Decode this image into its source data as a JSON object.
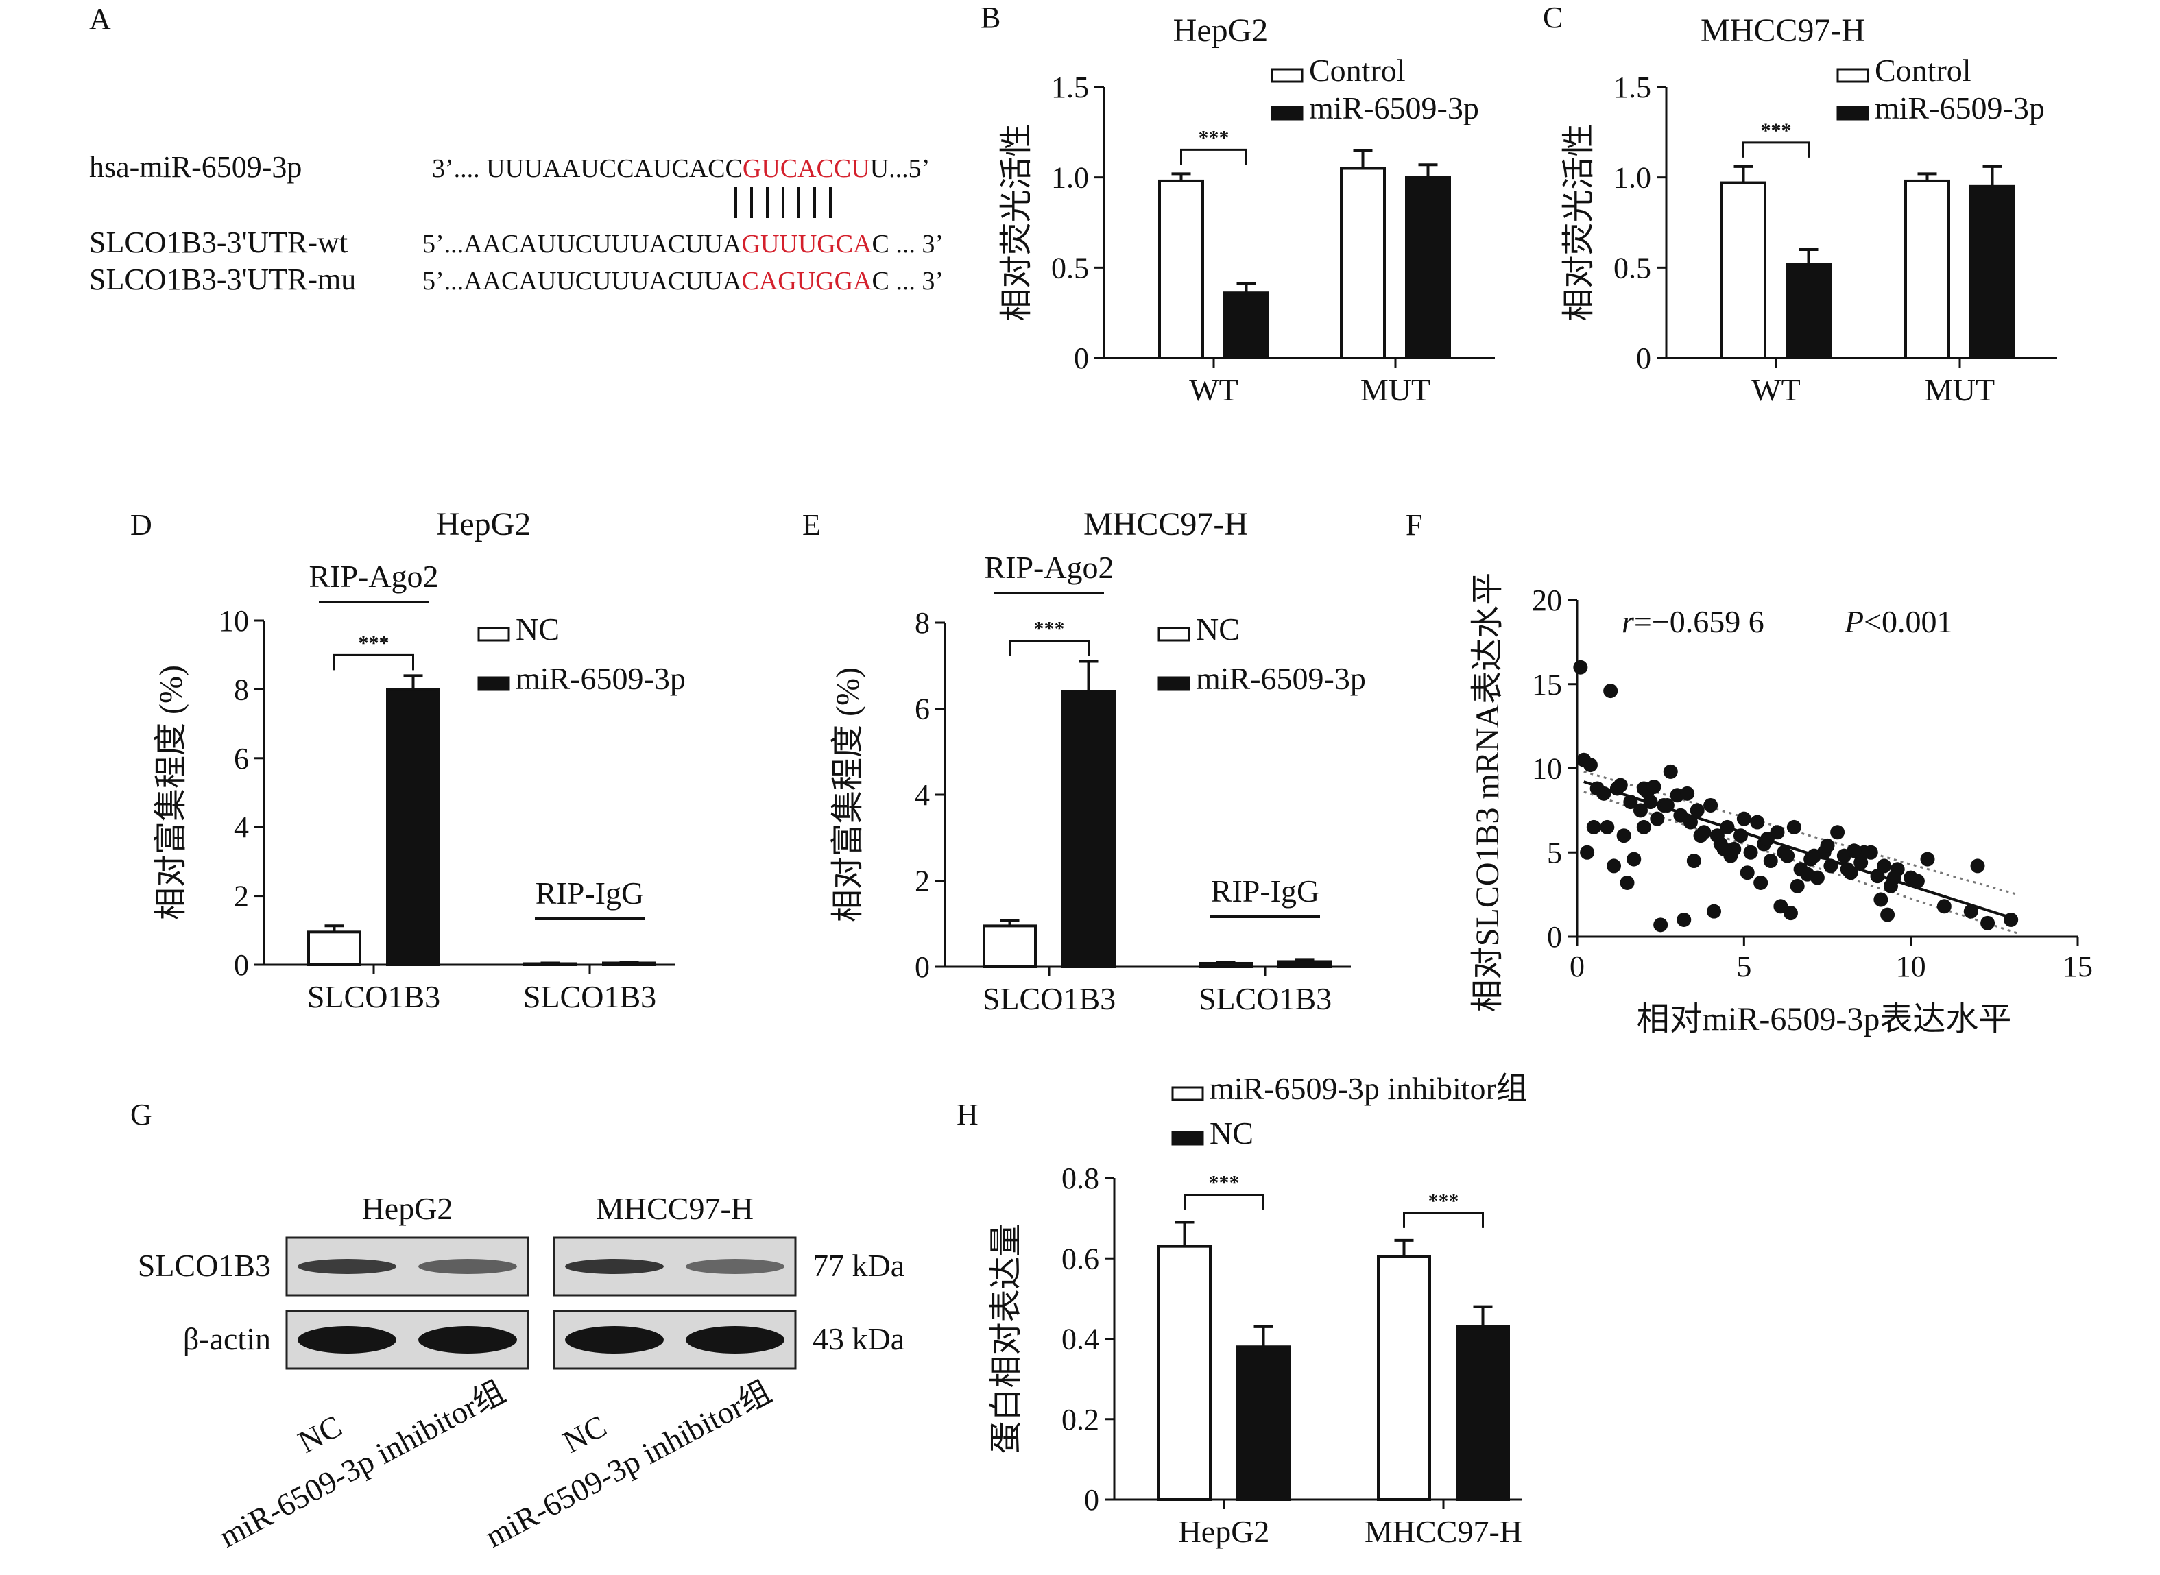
{
  "panelA": {
    "label": "A",
    "rows": [
      {
        "name": "hsa-miR-6509-3p",
        "seq_prefix": "3’.... UUUAAUCCAUCACC",
        "seq_hl": "GUCACCU",
        "seq_suffix": "U...5’"
      },
      {
        "name": "SLCO1B3-3'UTR-wt",
        "seq_prefix": "5’...AACAUUCUUUACUUA",
        "seq_hl": "GUUUGCA",
        "seq_suffix": "C ... 3’"
      },
      {
        "name": "SLCO1B3-3'UTR-mu",
        "seq_prefix": "5’...AACAUUCUUUACUUA",
        "seq_hl": "CAGUGGA",
        "seq_suffix": "C ... 3’"
      }
    ],
    "pairing_lines": 7,
    "highlight_color": "#d4202c"
  },
  "chart_data": [
    {
      "panel": "B",
      "type": "bar",
      "title": "HepG2",
      "ylabel": "相对荧光活性",
      "xlabel": "",
      "categories": [
        "WT",
        "MUT"
      ],
      "ylim": [
        0,
        1.5
      ],
      "yticks": [
        "0",
        "0.5",
        "1.0",
        "1.5"
      ],
      "series": [
        {
          "name": "Control",
          "fill": "white",
          "values": [
            0.98,
            1.05
          ],
          "errors": [
            0.04,
            0.1
          ]
        },
        {
          "name": "miR-6509-3p",
          "fill": "black",
          "values": [
            0.36,
            1.0
          ],
          "errors": [
            0.05,
            0.07
          ]
        }
      ],
      "significance": [
        {
          "category": 0,
          "label": "***"
        }
      ],
      "legend": "top-right"
    },
    {
      "panel": "C",
      "type": "bar",
      "title": "MHCC97-H",
      "ylabel": "相对荧光活性",
      "xlabel": "",
      "categories": [
        "WT",
        "MUT"
      ],
      "ylim": [
        0,
        1.5
      ],
      "yticks": [
        "0",
        "0.5",
        "1.0",
        "1.5"
      ],
      "series": [
        {
          "name": "Control",
          "fill": "white",
          "values": [
            0.97,
            0.98
          ],
          "errors": [
            0.09,
            0.04
          ]
        },
        {
          "name": "miR-6509-3p",
          "fill": "black",
          "values": [
            0.52,
            0.95
          ],
          "errors": [
            0.08,
            0.11
          ]
        }
      ],
      "significance": [
        {
          "category": 0,
          "label": "***"
        }
      ],
      "legend": "top-right"
    },
    {
      "panel": "D",
      "type": "bar",
      "title": "HepG2",
      "ylabel": "相对富集程度 (%)",
      "xlabel": "",
      "categories": [
        "SLCO1B3",
        "SLCO1B3"
      ],
      "group_labels": [
        "RIP-Ago2",
        "RIP-IgG"
      ],
      "ylim": [
        0,
        10
      ],
      "yticks": [
        "0",
        "2",
        "4",
        "6",
        "8",
        "10"
      ],
      "series": [
        {
          "name": "NC",
          "fill": "white",
          "values": [
            0.95,
            0.03
          ],
          "errors": [
            0.18,
            0.02
          ]
        },
        {
          "name": "miR-6509-3p",
          "fill": "black",
          "values": [
            8.0,
            0.05
          ],
          "errors": [
            0.4,
            0.02
          ]
        }
      ],
      "significance": [
        {
          "category": 0,
          "label": "***"
        }
      ],
      "legend": "top-right"
    },
    {
      "panel": "E",
      "type": "bar",
      "title": "MHCC97-H",
      "ylabel": "相对富集程度 (%)",
      "xlabel": "",
      "categories": [
        "SLCO1B3",
        "SLCO1B3"
      ],
      "group_labels": [
        "RIP-Ago2",
        "RIP-IgG"
      ],
      "ylim": [
        0,
        8
      ],
      "yticks": [
        "0",
        "2",
        "4",
        "6",
        "8"
      ],
      "series": [
        {
          "name": "NC",
          "fill": "white",
          "values": [
            0.95,
            0.08
          ],
          "errors": [
            0.12,
            0.03
          ]
        },
        {
          "name": "miR-6509-3p",
          "fill": "black",
          "values": [
            6.4,
            0.12
          ],
          "errors": [
            0.7,
            0.05
          ]
        }
      ],
      "significance": [
        {
          "category": 0,
          "label": "***"
        }
      ],
      "legend": "top-right"
    },
    {
      "panel": "F",
      "type": "scatter",
      "title": "",
      "xlabel": "相对miR-6509-3p表达水平",
      "ylabel": "相对SLCO1B3 mRNA表达水平",
      "xlim": [
        0,
        15
      ],
      "ylim": [
        0,
        20
      ],
      "xticks": [
        "0",
        "5",
        "10",
        "15"
      ],
      "yticks": [
        "0",
        "5",
        "10",
        "15",
        "20"
      ],
      "annotation_r": "r=−0.659 6",
      "annotation_p": "P<0.001",
      "fit": {
        "x": [
          0.2,
          13.2
        ],
        "y": [
          9.2,
          1.0
        ]
      },
      "ci_upper": {
        "x": [
          0.2,
          13.2
        ],
        "y": [
          9.8,
          2.5
        ]
      },
      "ci_lower": {
        "x": [
          0.2,
          13.2
        ],
        "y": [
          8.6,
          0.2
        ]
      },
      "points": {
        "x": [
          0.1,
          0.2,
          0.4,
          0.3,
          1.0,
          1.2,
          0.8,
          0.9,
          1.4,
          1.3,
          1.6,
          1.9,
          2.0,
          2.1,
          2.3,
          2.4,
          2.6,
          2.8,
          3.0,
          3.1,
          3.3,
          3.4,
          3.6,
          3.8,
          4.0,
          4.2,
          4.3,
          4.5,
          4.7,
          4.9,
          5.0,
          5.2,
          5.4,
          5.6,
          5.8,
          6.0,
          6.2,
          6.3,
          6.5,
          6.7,
          7.0,
          7.2,
          7.4,
          7.6,
          7.8,
          8.0,
          8.2,
          8.5,
          8.8,
          9.0,
          9.2,
          9.4,
          9.6,
          0.6,
          1.1,
          1.7,
          2.2,
          2.7,
          3.2,
          3.7,
          4.1,
          4.6,
          5.1,
          5.5,
          6.1,
          6.6,
          7.1,
          7.5,
          8.1,
          8.6,
          9.1,
          9.5,
          10.0,
          10.5,
          11.0,
          12.0,
          12.3,
          13.0,
          0.5,
          1.5,
          2.5,
          3.5,
          5.7,
          6.4,
          8.3,
          9.3,
          10.2,
          11.8,
          2.0,
          4.4,
          6.9
        ],
        "y": [
          16.0,
          10.5,
          10.2,
          5.0,
          14.6,
          8.8,
          8.5,
          6.5,
          6.0,
          9.0,
          8.0,
          7.5,
          8.8,
          8.6,
          8.9,
          7.0,
          7.8,
          9.8,
          8.4,
          7.2,
          8.5,
          6.8,
          7.5,
          6.2,
          7.8,
          6.0,
          5.5,
          6.5,
          5.2,
          6.0,
          7.0,
          5.0,
          6.8,
          5.5,
          4.5,
          6.2,
          5.0,
          4.8,
          6.5,
          4.0,
          4.6,
          3.5,
          5.0,
          4.2,
          6.2,
          4.8,
          3.8,
          4.4,
          5.0,
          3.6,
          4.2,
          3.0,
          4.0,
          8.8,
          4.2,
          4.6,
          8.0,
          7.8,
          1.0,
          6.0,
          1.5,
          4.8,
          3.8,
          3.2,
          1.8,
          3.0,
          4.8,
          5.4,
          4.0,
          5.0,
          2.2,
          3.5,
          3.5,
          4.6,
          1.8,
          4.2,
          0.8,
          1.0,
          6.5,
          3.2,
          0.7,
          4.5,
          5.8,
          1.4,
          5.1,
          1.3,
          3.3,
          1.5,
          6.5,
          5.2,
          3.7
        ]
      }
    },
    {
      "panel": "H",
      "type": "bar",
      "title": "",
      "ylabel": "蛋白相对表达量",
      "xlabel": "",
      "categories": [
        "HepG2",
        "MHCC97-H"
      ],
      "ylim": [
        0,
        0.8
      ],
      "yticks": [
        "0",
        "0.2",
        "0.4",
        "0.6",
        "0.8"
      ],
      "series": [
        {
          "name": "miR-6509-3p inhibitor组",
          "fill": "white",
          "values": [
            0.63,
            0.605
          ],
          "errors": [
            0.06,
            0.04
          ]
        },
        {
          "name": "NC",
          "fill": "black",
          "values": [
            0.38,
            0.43
          ],
          "errors": [
            0.05,
            0.05
          ]
        }
      ],
      "significance": [
        {
          "category": 0,
          "label": "***"
        },
        {
          "category": 1,
          "label": "***"
        }
      ],
      "legend": "top-left"
    }
  ],
  "panelG": {
    "label": "G",
    "cell_lines": [
      "HepG2",
      "MHCC97-H"
    ],
    "proteins": [
      {
        "name": "SLCO1B3",
        "size": "77 kDa",
        "intensities": [
          0.75,
          0.5,
          0.8,
          0.45
        ]
      },
      {
        "name": "β-actin",
        "size": "43 kDa",
        "intensities": [
          1.0,
          1.0,
          1.0,
          1.0
        ]
      }
    ],
    "lane_labels": [
      "NC",
      "miR-6509-3p inhibitor组",
      "NC",
      "miR-6509-3p inhibitor组"
    ]
  }
}
